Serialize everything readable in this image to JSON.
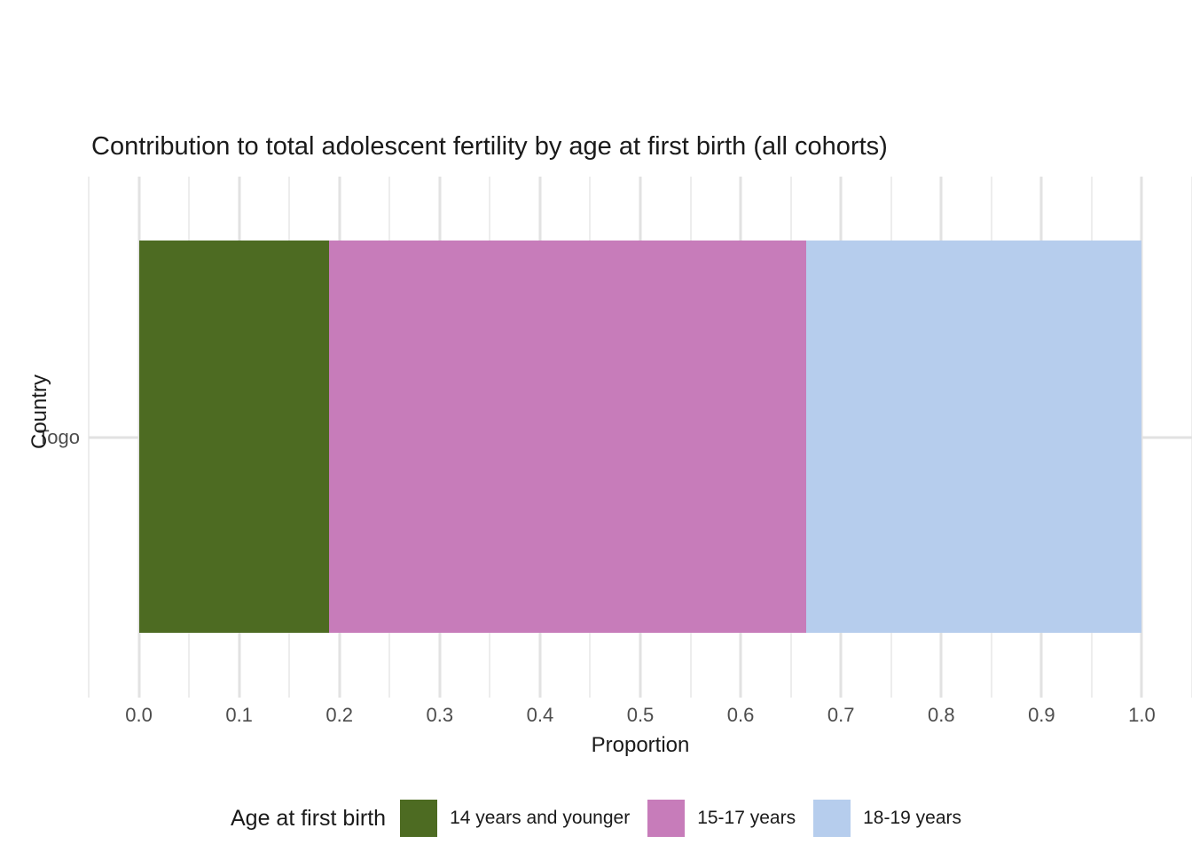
{
  "title": "Contribution to total adolescent fertility by age at first birth (all cohorts)",
  "axes": {
    "x": {
      "label": "Proportion",
      "tick_labels": [
        "0.0",
        "0.1",
        "0.2",
        "0.3",
        "0.4",
        "0.5",
        "0.6",
        "0.7",
        "0.8",
        "0.9",
        "1.0"
      ]
    },
    "y": {
      "label": "Country",
      "tick_labels": [
        "Togo"
      ]
    }
  },
  "legend": {
    "title": "Age at first birth",
    "items": [
      {
        "label": "14 years and younger",
        "color": "#4d6b22"
      },
      {
        "label": "15-17 years",
        "color": "#c77cba"
      },
      {
        "label": "18-19 years",
        "color": "#b6cded"
      }
    ]
  },
  "colors": {
    "background": "#ffffff",
    "grid_major": "#e2e2e2",
    "grid_minor": "#ededed",
    "axis_text": "#4d4d4d",
    "text": "#1a1a1a"
  },
  "chart_data": {
    "type": "bar",
    "orientation": "horizontal",
    "stacked": true,
    "title": "Contribution to total adolescent fertility by age at first birth (all cohorts)",
    "xlabel": "Proportion",
    "ylabel": "Country",
    "categories": [
      "Togo"
    ],
    "series": [
      {
        "name": "14 years and younger",
        "color": "#4d6b22",
        "values": [
          0.19
        ]
      },
      {
        "name": "15-17 years",
        "color": "#c77cba",
        "values": [
          0.475
        ]
      },
      {
        "name": "18-19 years",
        "color": "#b6cded",
        "values": [
          0.335
        ]
      }
    ],
    "xlim": [
      0,
      1
    ],
    "xlim_expanded": [
      -0.05,
      1.05
    ],
    "x_major_ticks": [
      0.0,
      0.1,
      0.2,
      0.3,
      0.4,
      0.5,
      0.6,
      0.7,
      0.8,
      0.9,
      1.0
    ],
    "x_minor_ticks": [
      -0.05,
      0.05,
      0.15,
      0.25,
      0.35,
      0.45,
      0.55,
      0.65,
      0.75,
      0.85,
      0.95,
      1.05
    ],
    "grid": true,
    "legend_position": "bottom",
    "legend_title": "Age at first birth"
  }
}
